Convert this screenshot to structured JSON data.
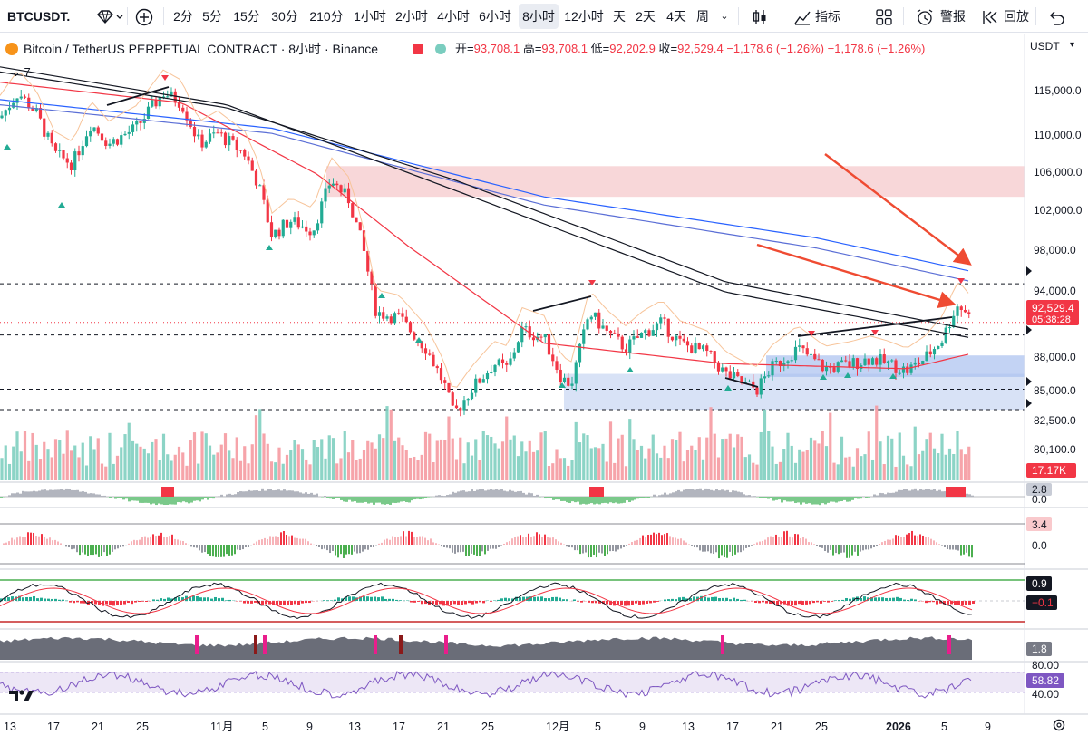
{
  "toolbar": {
    "symbol": "BTCUSDT.",
    "intervals": [
      "2分",
      "5分",
      "15分",
      "30分",
      "210分",
      "1小时",
      "2小时",
      "4小时",
      "6小时",
      "8小时",
      "12小时",
      "天",
      "2天",
      "4天",
      "周"
    ],
    "active_interval": "8小时",
    "indicators_label": "指标",
    "alert_label": "警报",
    "replay_label": "回放"
  },
  "legend": {
    "title": "Bitcoin / TetherUS PERPETUAL CONTRACT · 8小时 · Binance",
    "open_label": "开=",
    "open": "93,708.1",
    "high_label": "高=",
    "high": "93,708.1",
    "low_label": "低=",
    "low": "92,202.9",
    "close_label": "收=",
    "close": "92,529.4",
    "change": "−1,178.6 (−1.26%)",
    "change2": "−1,178.6 (−1.26%)",
    "indicator_toggle": "7",
    "currency": "USDT"
  },
  "price_axis": {
    "labels": [
      "115,000.0",
      "110,000.0",
      "106,000.0",
      "102,000.0",
      "98,000.0",
      "94,000.0",
      "88,000.0",
      "85,000.0",
      "82,500.0",
      "80,100.0"
    ],
    "last_price": "92,529.4",
    "countdown": "05:38:28",
    "volume_badge": "17.17K"
  },
  "panes": {
    "p1": {
      "badge": "2.8",
      "zero": "0.0"
    },
    "p2": {
      "badge": "3.4",
      "zero": "0.0"
    },
    "p3": {
      "badge1": "0.9",
      "badge2": "−0.1"
    },
    "p4": {
      "badge": "1.8"
    },
    "p5": {
      "top": "80.00",
      "badge": "58.82",
      "bottom": "40.00"
    }
  },
  "time_axis": [
    "13",
    "17",
    "21",
    "25",
    "11月",
    "5",
    "9",
    "13",
    "17",
    "21",
    "25",
    "12月",
    "5",
    "9",
    "13",
    "17",
    "21",
    "25",
    "2026",
    "5",
    "9"
  ],
  "chart_data": {
    "type": "candlestick",
    "symbol": "BTCUSDT",
    "interval": "8小时",
    "yrange": [
      79500,
      118000
    ],
    "ohlc_last": {
      "open": 93708.1,
      "high": 93708.1,
      "low": 92202.9,
      "close": 92529.4
    },
    "path_points": [
      [
        0,
        112500
      ],
      [
        20,
        115000
      ],
      [
        40,
        113000
      ],
      [
        60,
        109000
      ],
      [
        80,
        108000
      ],
      [
        100,
        112000
      ],
      [
        120,
        110000
      ],
      [
        150,
        111500
      ],
      [
        180,
        115000
      ],
      [
        200,
        114000
      ],
      [
        220,
        110000
      ],
      [
        240,
        111000
      ],
      [
        270,
        109000
      ],
      [
        285,
        106000
      ],
      [
        300,
        101000
      ],
      [
        320,
        102500
      ],
      [
        345,
        101500
      ],
      [
        365,
        106500
      ],
      [
        385,
        104500
      ],
      [
        400,
        100000
      ],
      [
        415,
        93500
      ],
      [
        440,
        93000
      ],
      [
        470,
        90000
      ],
      [
        490,
        86500
      ],
      [
        500,
        83500
      ],
      [
        520,
        86000
      ],
      [
        545,
        88500
      ],
      [
        560,
        88000
      ],
      [
        575,
        91800
      ],
      [
        600,
        91000
      ],
      [
        620,
        87000
      ],
      [
        630,
        86500
      ],
      [
        650,
        93500
      ],
      [
        670,
        91500
      ],
      [
        690,
        90000
      ],
      [
        710,
        91500
      ],
      [
        730,
        92500
      ],
      [
        750,
        90500
      ],
      [
        780,
        89500
      ],
      [
        800,
        87500
      ],
      [
        820,
        86500
      ],
      [
        835,
        86000
      ],
      [
        850,
        88000
      ],
      [
        880,
        90000
      ],
      [
        910,
        88000
      ],
      [
        940,
        88500
      ],
      [
        960,
        89000
      ],
      [
        980,
        88500
      ],
      [
        1000,
        87800
      ],
      [
        1020,
        89000
      ],
      [
        1040,
        91000
      ],
      [
        1055,
        94200
      ],
      [
        1065,
        93700
      ],
      [
        1072,
        92529
      ]
    ],
    "moving_averages": [
      {
        "color": "#2962ff",
        "points": [
          [
            0,
            114300
          ],
          [
            300,
            111500
          ],
          [
            600,
            104800
          ],
          [
            900,
            100800
          ],
          [
            1072,
            97500
          ]
        ]
      },
      {
        "color": "#5b6fd6",
        "points": [
          [
            0,
            113800
          ],
          [
            300,
            111000
          ],
          [
            600,
            104000
          ],
          [
            900,
            99800
          ],
          [
            1072,
            96500
          ]
        ]
      },
      {
        "color": "#131722",
        "points": [
          [
            0,
            117000
          ],
          [
            250,
            113500
          ],
          [
            500,
            106500
          ],
          [
            800,
            96500
          ],
          [
            1072,
            91800
          ]
        ]
      },
      {
        "color": "#131722",
        "points": [
          [
            0,
            117500
          ],
          [
            250,
            113800
          ],
          [
            500,
            105500
          ],
          [
            800,
            95500
          ],
          [
            1072,
            91000
          ]
        ]
      },
      {
        "color": "#f23645",
        "points": [
          [
            0,
            116000
          ],
          [
            200,
            114000
          ],
          [
            350,
            107000
          ],
          [
            450,
            100000
          ],
          [
            600,
            90500
          ],
          [
            800,
            88500
          ],
          [
            1000,
            88000
          ],
          [
            1072,
            89500
          ]
        ]
      }
    ],
    "horizontal_levels": [
      96300,
      91300,
      86000,
      84000
    ],
    "zones": [
      {
        "from_x": 360,
        "to_x": 1130,
        "low": 104800,
        "high": 107800,
        "color": "#f5c6c9"
      },
      {
        "from_x": 622,
        "to_x": 1130,
        "low": 84000,
        "high": 87500,
        "color": "#c7d5f2"
      },
      {
        "from_x": 845,
        "to_x": 1130,
        "low": 87200,
        "high": 89300,
        "color": "#a9c1ef"
      }
    ],
    "trend_arrows": [
      {
        "from": [
          910,
          170
        ],
        "to": [
          1068,
          290
        ],
        "color": "#ef4b32"
      },
      {
        "from": [
          835,
          270
        ],
        "to": [
          1050,
          335
        ],
        "color": "#ef4b32"
      }
    ]
  }
}
